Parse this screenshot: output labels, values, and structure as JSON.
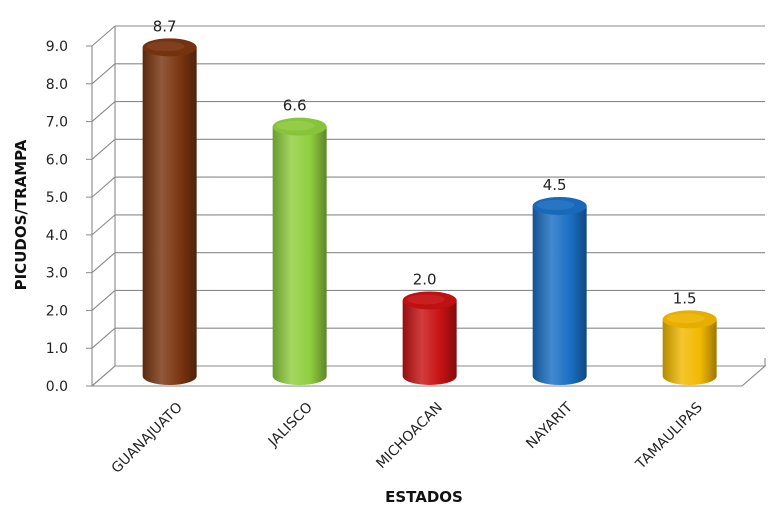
{
  "chart_data": {
    "type": "bar",
    "style": "3d-cylinder",
    "categories": [
      "GUANAJUATO",
      "JALISCO",
      "MICHOACAN",
      "NAYARIT",
      "TAMAULIPAS"
    ],
    "values": [
      8.7,
      6.6,
      2.0,
      4.5,
      1.5
    ],
    "value_labels": [
      "8.7",
      "6.6",
      "2.0",
      "4.5",
      "1.5"
    ],
    "colors": [
      "#7a3510",
      "#8fce3e",
      "#c81212",
      "#1a6fc4",
      "#f2b800"
    ],
    "xlabel": "ESTADOS",
    "ylabel": "PICUDOS/TRAMPA",
    "ylim": [
      0,
      9
    ],
    "yticks": [
      "0.0",
      "1.0",
      "2.0",
      "3.0",
      "4.0",
      "5.0",
      "6.0",
      "7.0",
      "8.0",
      "9.0"
    ],
    "grid": true,
    "legend": "none"
  }
}
